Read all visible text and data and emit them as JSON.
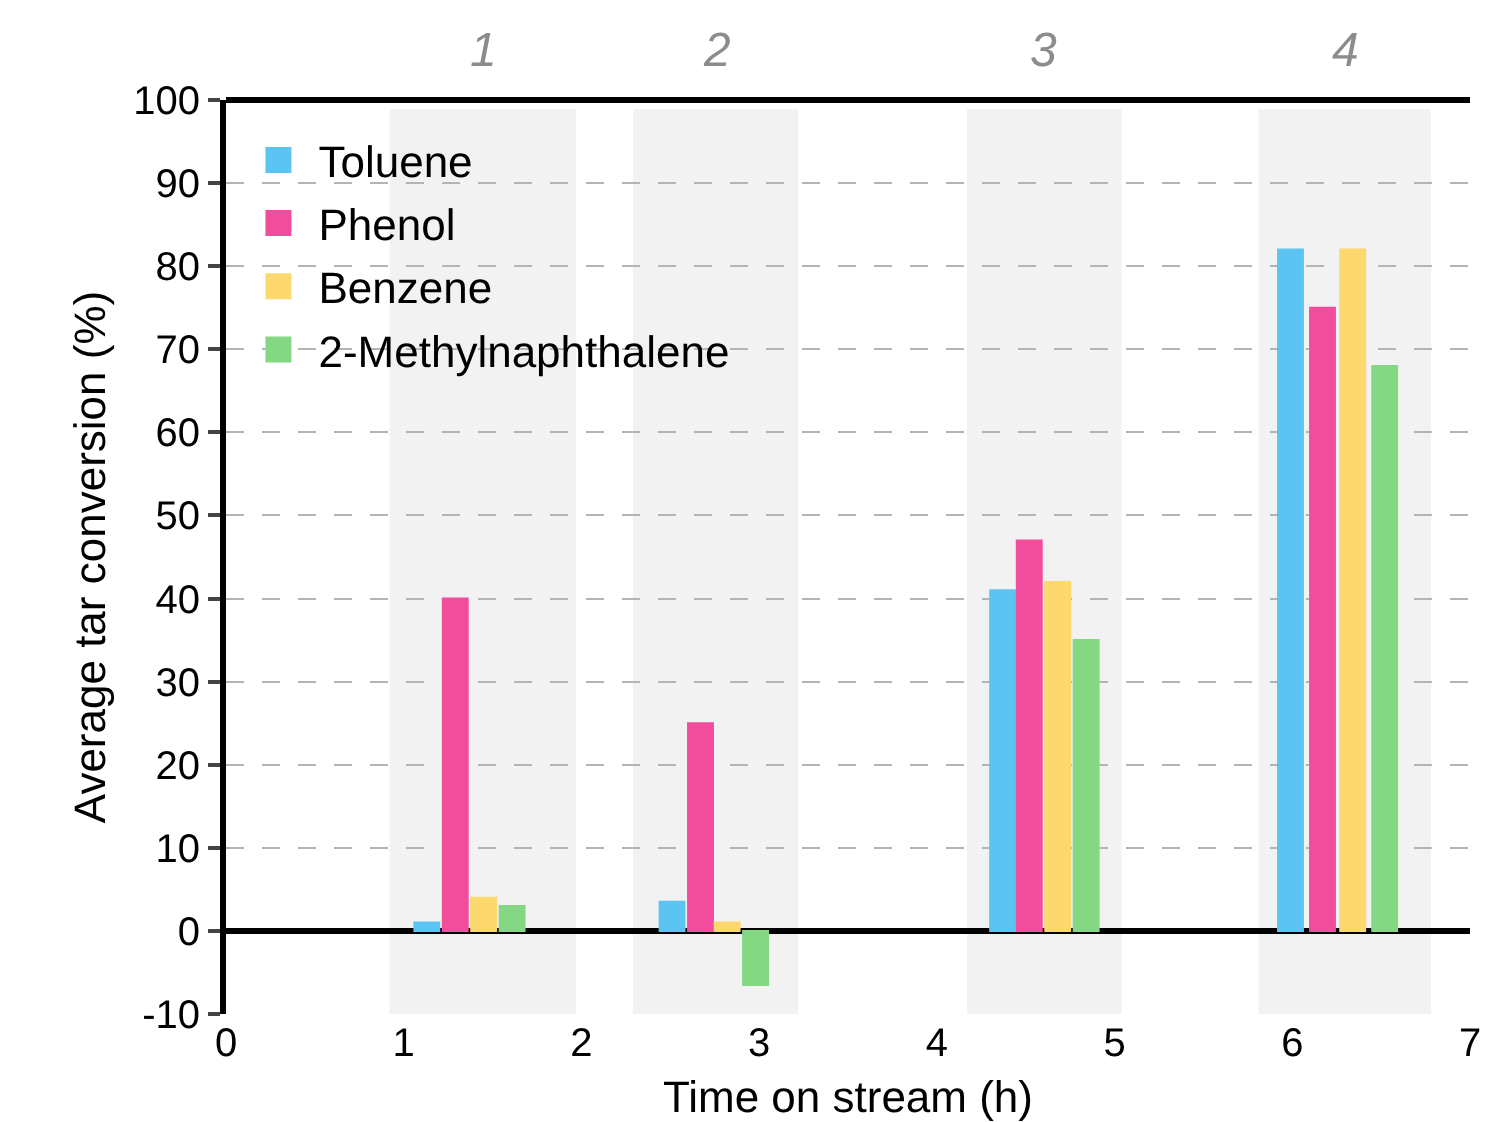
{
  "chart_data": {
    "type": "bar",
    "xlabel": "Time on stream (h)",
    "ylabel": "Average tar conversion (%)",
    "series": [
      {
        "name": "Toluene",
        "color": "#5cc4f2",
        "x": [
          1.13,
          2.51,
          4.37,
          5.99
        ],
        "values": [
          1,
          3.5,
          41,
          82
        ]
      },
      {
        "name": "Phenol",
        "color": "#f24c9c",
        "x": [
          1.29,
          2.67,
          4.52,
          6.17
        ],
        "values": [
          40,
          25,
          47,
          75
        ]
      },
      {
        "name": "Benzene",
        "color": "#fcd86e",
        "x": [
          1.45,
          2.82,
          4.68,
          6.34
        ],
        "values": [
          4,
          1,
          42,
          82
        ]
      },
      {
        "name": "2-Methylnaphthalene",
        "color": "#84d884",
        "x": [
          1.61,
          2.98,
          4.84,
          6.52
        ],
        "values": [
          3,
          -6.5,
          35,
          68
        ]
      }
    ],
    "bands": [
      {
        "axis": "x",
        "from": 0.92,
        "to": 1.97,
        "label": "1",
        "color": "#f2f2f2"
      },
      {
        "axis": "x",
        "from": 2.29,
        "to": 3.22,
        "label": "2",
        "color": "#f2f2f2"
      },
      {
        "axis": "x",
        "from": 4.17,
        "to": 5.04,
        "label": "3",
        "color": "#f2f2f2"
      },
      {
        "axis": "x",
        "from": 5.81,
        "to": 6.78,
        "label": "4",
        "color": "#f2f2f2"
      }
    ],
    "xlim": [
      0,
      7
    ],
    "xticks": [
      0,
      1,
      2,
      3,
      4,
      5,
      6,
      7
    ],
    "ylim": [
      -10,
      100
    ],
    "yticks": [
      -10,
      0,
      10,
      20,
      30,
      40,
      50,
      60,
      70,
      80,
      90,
      100
    ],
    "grid": "y",
    "legend": "top left"
  }
}
